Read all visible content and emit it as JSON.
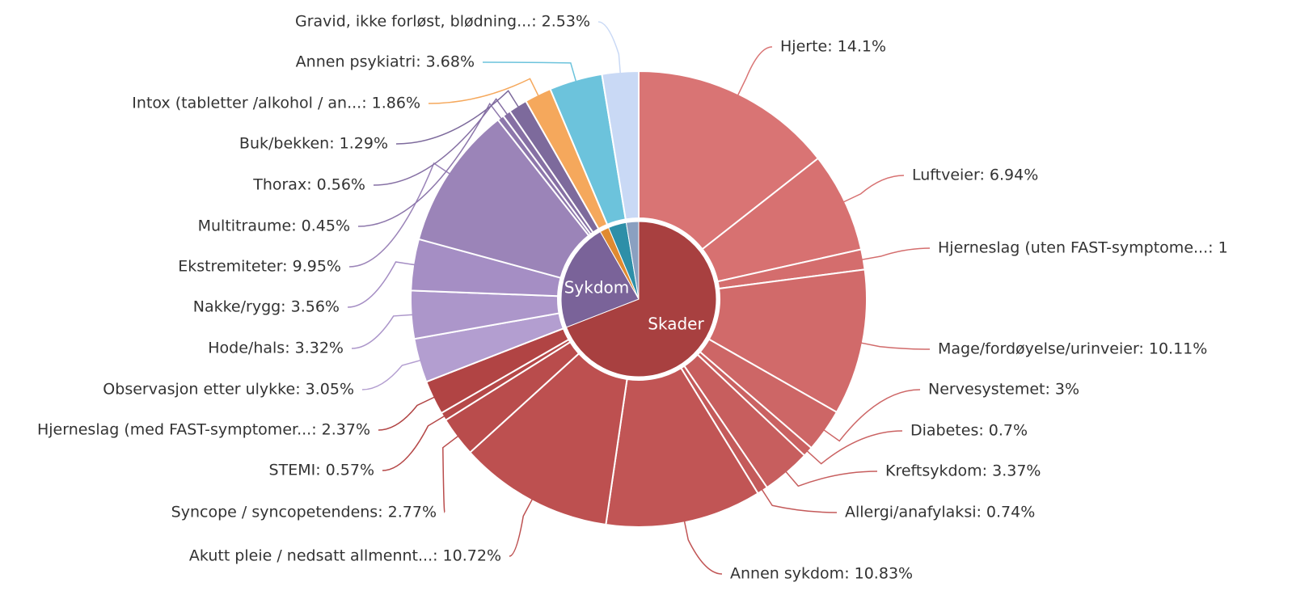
{
  "chart_data": {
    "type": "sunburst",
    "groups": [
      {
        "name": "Sykdom",
        "color": "#a84040",
        "slices": [
          {
            "label": "Hjerte: 14.1%",
            "value": 14.1,
            "color": "#d97474"
          },
          {
            "label": "Luftveier: 6.94%",
            "value": 6.94,
            "color": "#d77171"
          },
          {
            "label": "Hjerneslag (uten FAST-symptome...: 1",
            "value": 1.4,
            "color": "#d46d6d"
          },
          {
            "label": "Mage/fordøyelse/urinveier: 10.11%",
            "value": 10.11,
            "color": "#d16a6a"
          },
          {
            "label": "Nervesystemet: 3%",
            "value": 3,
            "color": "#cd6666"
          },
          {
            "label": "Diabetes: 0.7%",
            "value": 0.7,
            "color": "#ca6262"
          },
          {
            "label": "Kreftsykdom: 3.37%",
            "value": 3.37,
            "color": "#c75e5e"
          },
          {
            "label": "Allergi/anafylaksi: 0.74%",
            "value": 0.74,
            "color": "#c45a5a"
          },
          {
            "label": "Annen sykdom: 10.83%",
            "value": 10.83,
            "color": "#c15555"
          },
          {
            "label": "Akutt pleie / nedsatt allmennt...: 10.72%",
            "value": 10.72,
            "color": "#bd5050"
          },
          {
            "label": "Syncope / syncopetendens: 2.77%",
            "value": 2.77,
            "color": "#b94c4c"
          },
          {
            "label": "STEMI: 0.57%",
            "value": 0.57,
            "color": "#b54848"
          },
          {
            "label": "Hjerneslag (med FAST-symptomer...: 2.37%",
            "value": 2.37,
            "color": "#b14444"
          }
        ]
      },
      {
        "name": "Skader",
        "color": "#7a6399",
        "slices": [
          {
            "label": "Observasjon etter ulykke: 3.05%",
            "value": 3.05,
            "color": "#b39ed0"
          },
          {
            "label": "Hode/hals: 3.32%",
            "value": 3.32,
            "color": "#ac96ca"
          },
          {
            "label": "Nakke/rygg: 3.56%",
            "value": 3.56,
            "color": "#a58ec4"
          },
          {
            "label": "Ekstremiteter: 9.95%",
            "value": 9.95,
            "color": "#9b84b8"
          },
          {
            "label": "Multitraume: 0.45%",
            "value": 0.45,
            "color": "#8d77ab"
          },
          {
            "label": "Thorax: 0.56%",
            "value": 0.56,
            "color": "#8670a4"
          },
          {
            "label": "Buk/bekken: 1.29%",
            "value": 1.29,
            "color": "#7d6a9c"
          }
        ]
      },
      {
        "name": null,
        "color": "#e08a30",
        "slices": [
          {
            "label": "Intox (tabletter /alkohol / an...: 1.86%",
            "value": 1.86,
            "color": "#f5a85c"
          }
        ]
      },
      {
        "name": null,
        "color": "#2e8fa8",
        "slices": [
          {
            "label": "Annen psykiatri: 3.68%",
            "value": 3.68,
            "color": "#6cc3dc"
          }
        ]
      },
      {
        "name": null,
        "color": "#8aa0c0",
        "slices": [
          {
            "label": "Gravid, ikke forløst, blødning...: 2.53%",
            "value": 2.53,
            "color": "#c9d9f5"
          }
        ]
      }
    ]
  }
}
